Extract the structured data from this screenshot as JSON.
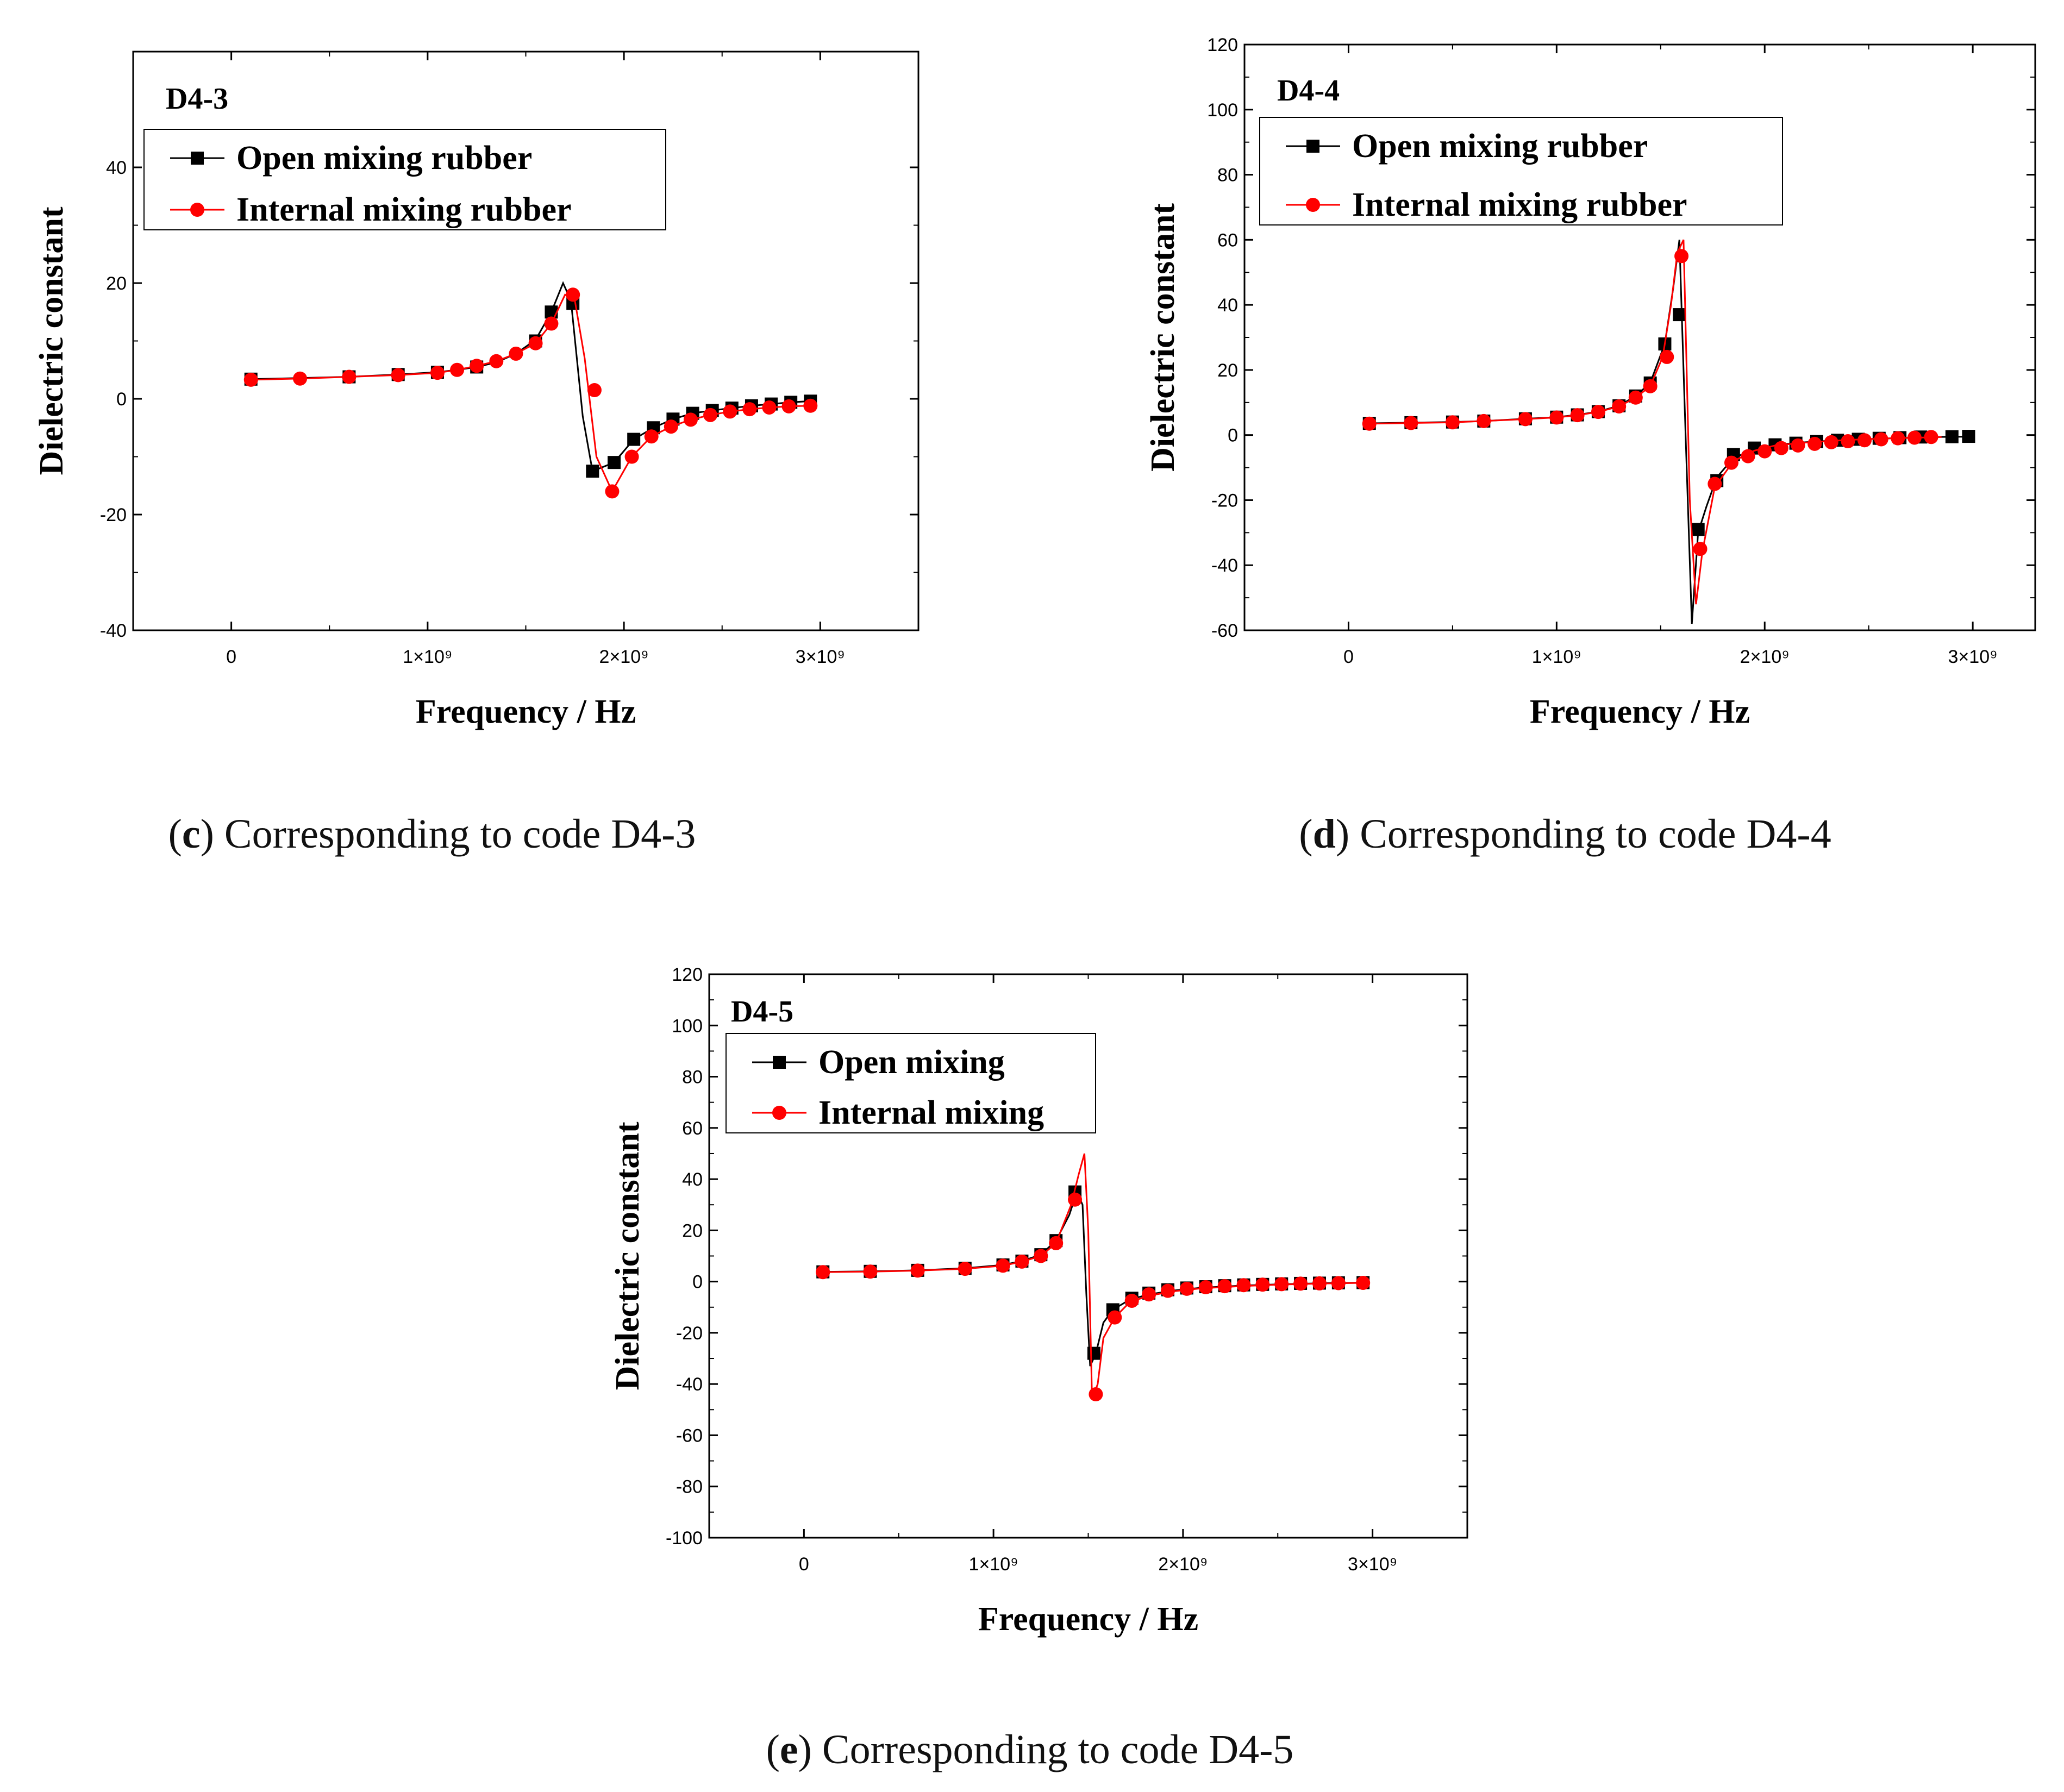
{
  "chart_data": [
    {
      "type": "line",
      "id": "c",
      "panel_label": "D4-3",
      "caption": {
        "letter": "c",
        "text": "Corresponding to code D4-3"
      },
      "xlabel": "Frequency / Hz",
      "ylabel": "Dielectric constant",
      "xlim": [
        -500000000,
        3500000000
      ],
      "ylim": [
        -40,
        60
      ],
      "xticks": [
        {
          "v": 0,
          "label": "0"
        },
        {
          "v": 1000000000,
          "label": "1×10⁹"
        },
        {
          "v": 2000000000,
          "label": "2×10⁹"
        },
        {
          "v": 3000000000,
          "label": "3×10⁹"
        }
      ],
      "yticks": [
        {
          "v": -40,
          "label": "-40"
        },
        {
          "v": -20,
          "label": "-20"
        },
        {
          "v": 0,
          "label": "0"
        },
        {
          "v": 20,
          "label": "20"
        },
        {
          "v": 40,
          "label": "40"
        }
      ],
      "legend": {
        "position": "top-left",
        "entries": [
          "Open mixing rubber",
          "Internal mixing rubber"
        ]
      },
      "series": [
        {
          "name": "Open mixing rubber",
          "color": "#000000",
          "marker": "square",
          "x": [
            100000000,
            350000000,
            600000000,
            850000000,
            1050000000,
            1150000000,
            1250000000,
            1350000000,
            1450000000,
            1550000000,
            1630000000,
            1690000000,
            1730000000,
            1790000000,
            1840000000,
            1950000000,
            2050000000,
            2150000000,
            2250000000,
            2350000000,
            2450000000,
            2550000000,
            2650000000,
            2750000000,
            2850000000,
            2950000000
          ],
          "y": [
            3.4,
            3.6,
            3.8,
            4.2,
            4.6,
            5.0,
            5.5,
            6.3,
            7.8,
            10.2,
            15,
            20,
            17,
            -3,
            -12.5,
            -11,
            -7,
            -5,
            -3.5,
            -2.5,
            -2.0,
            -1.6,
            -1.2,
            -0.9,
            -0.6,
            -0.4
          ],
          "marker_x": [
            100000000,
            600000000,
            850000000,
            1050000000,
            1250000000,
            1550000000,
            1630000000,
            1740000000,
            1840000000,
            1950000000,
            2050000000,
            2150000000,
            2250000000,
            2350000000,
            2450000000,
            2550000000,
            2650000000,
            2750000000,
            2850000000,
            2950000000
          ],
          "marker_y": [
            3.4,
            3.8,
            4.2,
            4.6,
            5.5,
            10,
            15,
            16.5,
            -12.5,
            -11,
            -7,
            -5,
            -3.5,
            -2.5,
            -2.0,
            -1.6,
            -1.2,
            -0.9,
            -0.6,
            -0.4
          ]
        },
        {
          "name": "Internal mixing rubber",
          "color": "#ff0000",
          "marker": "circle",
          "x": [
            100000000,
            350000000,
            600000000,
            850000000,
            1050000000,
            1150000000,
            1250000000,
            1350000000,
            1450000000,
            1550000000,
            1630000000,
            1700000000,
            1750000000,
            1800000000,
            1860000000,
            1940000000,
            2040000000,
            2140000000,
            2240000000,
            2340000000,
            2440000000,
            2540000000,
            2640000000,
            2740000000,
            2840000000,
            2950000000
          ],
          "y": [
            3.3,
            3.5,
            3.8,
            4.1,
            4.5,
            5.0,
            5.7,
            6.5,
            7.8,
            9.6,
            13,
            18,
            17,
            7,
            -10,
            -16,
            -10,
            -6.5,
            -4.8,
            -3.6,
            -2.8,
            -2.2,
            -1.8,
            -1.5,
            -1.3,
            -1.2
          ],
          "marker_x": [
            100000000,
            350000000,
            600000000,
            850000000,
            1050000000,
            1150000000,
            1250000000,
            1350000000,
            1450000000,
            1550000000,
            1630000000,
            1740000000,
            1850000000,
            1940000000,
            2040000000,
            2140000000,
            2240000000,
            2340000000,
            2440000000,
            2540000000,
            2640000000,
            2740000000,
            2840000000,
            2950000000
          ],
          "marker_y": [
            3.3,
            3.5,
            3.8,
            4.1,
            4.5,
            5.0,
            5.7,
            6.5,
            7.8,
            9.6,
            13,
            18,
            1.5,
            -16,
            -10,
            -6.5,
            -4.8,
            -3.6,
            -2.8,
            -2.2,
            -1.8,
            -1.5,
            -1.3,
            -1.2
          ]
        }
      ]
    },
    {
      "type": "line",
      "id": "d",
      "panel_label": "D4-4",
      "caption": {
        "letter": "d",
        "text": "Corresponding to code D4-4"
      },
      "xlabel": "Frequency / Hz",
      "ylabel": "Dielectric constant",
      "xlim": [
        -500000000,
        3300000000
      ],
      "ylim": [
        -60,
        120
      ],
      "xticks": [
        {
          "v": 0,
          "label": "0"
        },
        {
          "v": 1000000000,
          "label": "1×10⁹"
        },
        {
          "v": 2000000000,
          "label": "2×10⁹"
        },
        {
          "v": 3000000000,
          "label": "3×10⁹"
        }
      ],
      "yticks": [
        {
          "v": -60,
          "label": "-60"
        },
        {
          "v": -40,
          "label": "-40"
        },
        {
          "v": -20,
          "label": "-20"
        },
        {
          "v": 0,
          "label": "0"
        },
        {
          "v": 20,
          "label": "20"
        },
        {
          "v": 40,
          "label": "40"
        },
        {
          "v": 60,
          "label": "60"
        },
        {
          "v": 80,
          "label": "80"
        },
        {
          "v": 100,
          "label": "100"
        },
        {
          "v": 120,
          "label": "120"
        }
      ],
      "legend": {
        "position": "top-left",
        "entries": [
          "Open mixing rubber",
          "Internal mixing rubber"
        ]
      },
      "series": [
        {
          "name": "Open mixing rubber",
          "color": "#000000",
          "marker": "square",
          "x": [
            100000000,
            300000000,
            500000000,
            650000000,
            850000000,
            1000000000,
            1100000000,
            1200000000,
            1300000000,
            1380000000,
            1450000000,
            1520000000,
            1560000000,
            1590000000,
            1620000000,
            1650000000,
            1680000000,
            1720000000,
            1770000000,
            1850000000,
            1950000000,
            2050000000,
            2200000000,
            2400000000,
            2600000000,
            2800000000,
            2950000000,
            3000000000
          ],
          "y": [
            3.6,
            3.8,
            4.0,
            4.3,
            5.0,
            5.5,
            6.2,
            7.2,
            9.0,
            12,
            16,
            28,
            45,
            60,
            0,
            -58,
            -30,
            -22,
            -13,
            -7,
            -4.5,
            -3,
            -2.2,
            -1.4,
            -1.0,
            -0.6,
            -0.5,
            -0.4
          ],
          "marker_x": [
            100000000,
            300000000,
            500000000,
            650000000,
            850000000,
            1000000000,
            1100000000,
            1200000000,
            1300000000,
            1380000000,
            1450000000,
            1520000000,
            1590000000,
            1680000000,
            1770000000,
            1850000000,
            1950000000,
            2050000000,
            2150000000,
            2250000000,
            2350000000,
            2450000000,
            2550000000,
            2650000000,
            2750000000,
            2900000000,
            2980000000
          ],
          "marker_y": [
            3.6,
            3.8,
            4.0,
            4.3,
            5.0,
            5.5,
            6.2,
            7.2,
            9.0,
            12,
            16,
            28,
            37,
            -29,
            -14,
            -6,
            -4,
            -3,
            -2.5,
            -2.0,
            -1.6,
            -1.3,
            -1.0,
            -0.8,
            -0.6,
            -0.5,
            -0.4
          ]
        },
        {
          "name": "Internal mixing rubber",
          "color": "#ff0000",
          "marker": "circle",
          "x": [
            100000000,
            300000000,
            500000000,
            650000000,
            850000000,
            1000000000,
            1100000000,
            1200000000,
            1300000000,
            1380000000,
            1450000000,
            1510000000,
            1550000000,
            1580000000,
            1610000000,
            1640000000,
            1670000000,
            1700000000,
            1760000000,
            1850000000,
            1950000000,
            2050000000,
            2200000000,
            2400000000,
            2600000000,
            2850000000
          ],
          "y": [
            3.5,
            3.7,
            3.9,
            4.3,
            4.9,
            5.4,
            6.1,
            7.1,
            8.8,
            11.5,
            15,
            24,
            40,
            56,
            60,
            -20,
            -52,
            -36,
            -16,
            -8,
            -4.8,
            -3.2,
            -2.3,
            -1.5,
            -1.0,
            -0.6
          ],
          "marker_x": [
            100000000,
            300000000,
            500000000,
            650000000,
            850000000,
            1000000000,
            1100000000,
            1200000000,
            1300000000,
            1380000000,
            1450000000,
            1530000000,
            1600000000,
            1690000000,
            1760000000,
            1840000000,
            1920000000,
            2000000000,
            2080000000,
            2160000000,
            2240000000,
            2320000000,
            2400000000,
            2480000000,
            2560000000,
            2640000000,
            2720000000,
            2800000000
          ],
          "marker_y": [
            3.5,
            3.7,
            3.9,
            4.3,
            4.9,
            5.4,
            6.1,
            7.1,
            8.8,
            11.5,
            15,
            24,
            55,
            -35,
            -15,
            -8.5,
            -6.5,
            -5,
            -4,
            -3.2,
            -2.7,
            -2.2,
            -1.9,
            -1.6,
            -1.3,
            -1.0,
            -0.8,
            -0.6
          ]
        }
      ]
    },
    {
      "type": "line",
      "id": "e",
      "panel_label": "D4-5",
      "caption": {
        "letter": "e",
        "text": "Corresponding to code D4-5"
      },
      "xlabel": "Frequency / Hz",
      "ylabel": "Dielectric constant",
      "xlim": [
        -500000000,
        3500000000
      ],
      "ylim": [
        -100,
        120
      ],
      "xticks": [
        {
          "v": 0,
          "label": "0"
        },
        {
          "v": 1000000000,
          "label": "1×10⁹"
        },
        {
          "v": 2000000000,
          "label": "2×10⁹"
        },
        {
          "v": 3000000000,
          "label": "3×10⁹"
        }
      ],
      "yticks": [
        {
          "v": -100,
          "label": "-100"
        },
        {
          "v": -80,
          "label": "-80"
        },
        {
          "v": -60,
          "label": "-60"
        },
        {
          "v": -40,
          "label": "-40"
        },
        {
          "v": -20,
          "label": "-20"
        },
        {
          "v": 0,
          "label": "0"
        },
        {
          "v": 20,
          "label": "20"
        },
        {
          "v": 40,
          "label": "40"
        },
        {
          "v": 60,
          "label": "60"
        },
        {
          "v": 80,
          "label": "80"
        },
        {
          "v": 100,
          "label": "100"
        },
        {
          "v": 120,
          "label": "120"
        }
      ],
      "legend": {
        "position": "top-left",
        "entries": [
          "Open mixing",
          "Internal mixing"
        ]
      },
      "series": [
        {
          "name": "Open mixing",
          "color": "#000000",
          "marker": "square",
          "x": [
            100000000,
            350000000,
            600000000,
            850000000,
            1050000000,
            1150000000,
            1250000000,
            1330000000,
            1400000000,
            1440000000,
            1470000000,
            1490000000,
            1510000000,
            1540000000,
            1580000000,
            1630000000,
            1720000000,
            1820000000,
            1950000000,
            2100000000,
            2300000000,
            2500000000,
            2700000000,
            2950000000
          ],
          "y": [
            3.8,
            4.0,
            4.4,
            5.2,
            6.5,
            8.0,
            10.5,
            16,
            26,
            35,
            30,
            -5,
            -33,
            -28,
            -16,
            -11,
            -7,
            -5,
            -3.5,
            -2.4,
            -1.6,
            -1.1,
            -0.7,
            -0.4
          ],
          "marker_x": [
            100000000,
            350000000,
            600000000,
            850000000,
            1050000000,
            1150000000,
            1250000000,
            1330000000,
            1430000000,
            1530000000,
            1630000000,
            1730000000,
            1820000000,
            1920000000,
            2020000000,
            2120000000,
            2220000000,
            2320000000,
            2420000000,
            2520000000,
            2620000000,
            2720000000,
            2820000000,
            2950000000
          ],
          "marker_y": [
            3.8,
            4.0,
            4.4,
            5.2,
            6.5,
            8.0,
            10.5,
            16,
            35,
            -28,
            -11,
            -6.5,
            -4.5,
            -3.2,
            -2.5,
            -2.0,
            -1.6,
            -1.3,
            -1.1,
            -0.9,
            -0.7,
            -0.6,
            -0.5,
            -0.4
          ]
        },
        {
          "name": "Internal mixing",
          "color": "#ff0000",
          "marker": "circle",
          "x": [
            100000000,
            350000000,
            600000000,
            850000000,
            1050000000,
            1150000000,
            1250000000,
            1330000000,
            1410000000,
            1450000000,
            1480000000,
            1500000000,
            1520000000,
            1550000000,
            1580000000,
            1640000000,
            1720000000,
            1820000000,
            1950000000,
            2100000000,
            2300000000,
            2500000000,
            2700000000,
            2950000000
          ],
          "y": [
            3.7,
            3.9,
            4.3,
            5.0,
            6.2,
            7.8,
            10,
            15,
            30,
            42,
            50,
            20,
            -46,
            -40,
            -22,
            -14,
            -8,
            -5.5,
            -3.8,
            -2.6,
            -1.8,
            -1.2,
            -0.8,
            -0.5
          ],
          "marker_x": [
            100000000,
            350000000,
            600000000,
            850000000,
            1050000000,
            1150000000,
            1250000000,
            1330000000,
            1430000000,
            1540000000,
            1640000000,
            1730000000,
            1820000000,
            1920000000,
            2020000000,
            2120000000,
            2220000000,
            2320000000,
            2420000000,
            2520000000,
            2620000000,
            2720000000,
            2820000000,
            2950000000
          ],
          "marker_y": [
            3.7,
            3.9,
            4.3,
            5.0,
            6.2,
            7.8,
            10,
            15,
            32,
            -44,
            -14,
            -7.5,
            -5.0,
            -3.6,
            -2.8,
            -2.2,
            -1.8,
            -1.4,
            -1.2,
            -1.0,
            -0.8,
            -0.7,
            -0.6,
            -0.5
          ]
        }
      ]
    }
  ]
}
